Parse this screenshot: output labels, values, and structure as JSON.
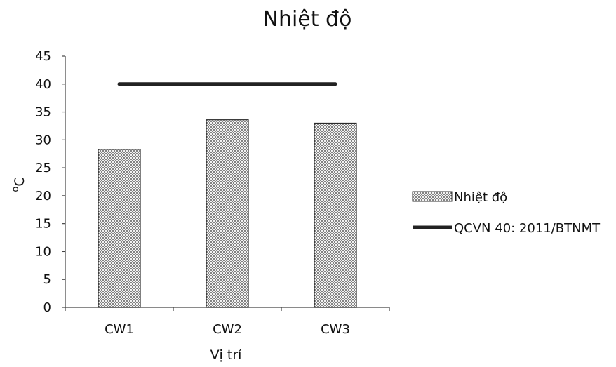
{
  "chart_data": {
    "type": "bar",
    "title": "Nhiệt độ",
    "xlabel": "Vị trí",
    "ylabel": "oC",
    "categories": [
      "CW1",
      "CW2",
      "CW3"
    ],
    "series": [
      {
        "name": "Nhiệt độ",
        "type": "bar",
        "values": [
          28.3,
          33.6,
          33.0
        ],
        "pattern": "dotted-grey"
      },
      {
        "name": "QCVN 40: 2011/BTNMT",
        "type": "line",
        "values": [
          40,
          40,
          40
        ],
        "color": "#222222"
      }
    ],
    "ylim": [
      0,
      45
    ],
    "yticks": [
      "0",
      "5",
      "10",
      "15",
      "20",
      "25",
      "30",
      "35",
      "40",
      "45"
    ],
    "grid": false,
    "legend": "right"
  }
}
